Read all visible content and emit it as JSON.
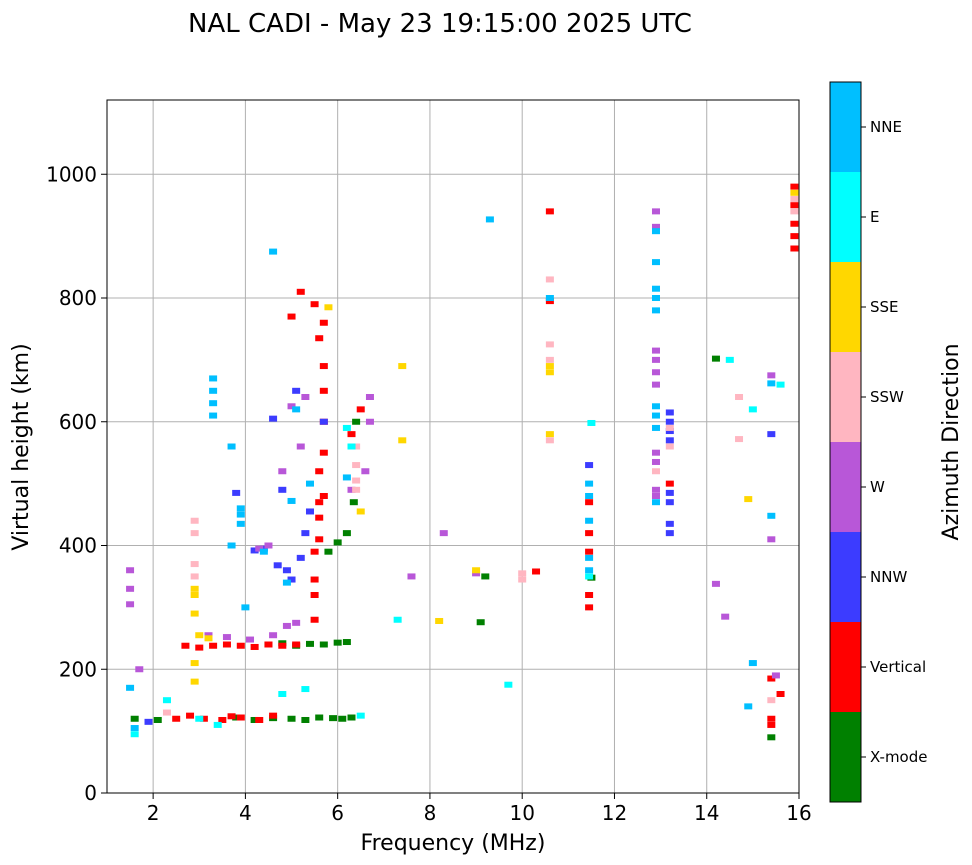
{
  "chart_data": {
    "type": "scatter",
    "title": "NAL CADI - May 23 19:15:00 2025 UTC",
    "xlabel": "Frequency (MHz)",
    "ylabel": "Virtual height (km)",
    "xlim": [
      1,
      16
    ],
    "ylim": [
      0,
      1120
    ],
    "xticks": [
      2,
      4,
      6,
      8,
      10,
      12,
      14,
      16
    ],
    "yticks": [
      0,
      200,
      400,
      600,
      800,
      1000
    ],
    "grid": true,
    "colorbar": {
      "label": "Azimuth Direction",
      "categories": [
        "X-mode",
        "Vertical",
        "NNW",
        "W",
        "SSW",
        "SSE",
        "E",
        "NNE"
      ],
      "colors": [
        "#008000",
        "#ff0000",
        "#3c3cff",
        "#b857d8",
        "#ffb6c1",
        "#ffd700",
        "#00ffff",
        "#00bfff"
      ]
    },
    "series": [
      {
        "name": "X-mode",
        "points": [
          [
            1.6,
            120
          ],
          [
            2.1,
            118
          ],
          [
            3.8,
            122
          ],
          [
            4.2,
            118
          ],
          [
            4.6,
            121
          ],
          [
            5.0,
            120
          ],
          [
            5.3,
            118
          ],
          [
            5.6,
            122
          ],
          [
            5.9,
            121
          ],
          [
            6.1,
            120
          ],
          [
            6.3,
            122
          ],
          [
            4.5,
            240
          ],
          [
            4.8,
            242
          ],
          [
            5.1,
            238
          ],
          [
            5.4,
            241
          ],
          [
            5.7,
            240
          ],
          [
            6.0,
            243
          ],
          [
            6.2,
            244
          ],
          [
            5.8,
            390
          ],
          [
            6.0,
            405
          ],
          [
            6.2,
            420
          ],
          [
            6.35,
            470
          ],
          [
            6.4,
            600
          ],
          [
            9.1,
            276
          ],
          [
            11.5,
            348
          ],
          [
            14.2,
            702
          ],
          [
            15.4,
            90
          ],
          [
            9.2,
            350
          ]
        ]
      },
      {
        "name": "Vertical",
        "points": [
          [
            2.5,
            120
          ],
          [
            2.8,
            125
          ],
          [
            3.1,
            120
          ],
          [
            3.5,
            118
          ],
          [
            3.7,
            124
          ],
          [
            3.9,
            122
          ],
          [
            4.3,
            118
          ],
          [
            4.6,
            125
          ],
          [
            2.7,
            238
          ],
          [
            3.0,
            235
          ],
          [
            3.3,
            238
          ],
          [
            3.6,
            240
          ],
          [
            3.9,
            238
          ],
          [
            4.2,
            236
          ],
          [
            4.5,
            240
          ],
          [
            4.8,
            238
          ],
          [
            5.1,
            240
          ],
          [
            5.5,
            280
          ],
          [
            5.5,
            320
          ],
          [
            5.5,
            345
          ],
          [
            5.5,
            390
          ],
          [
            5.6,
            410
          ],
          [
            5.6,
            445
          ],
          [
            5.6,
            470
          ],
          [
            5.7,
            480
          ],
          [
            5.6,
            520
          ],
          [
            5.7,
            550
          ],
          [
            5.7,
            600
          ],
          [
            5.7,
            650
          ],
          [
            5.7,
            690
          ],
          [
            5.6,
            735
          ],
          [
            5.7,
            760
          ],
          [
            5.5,
            790
          ],
          [
            5.2,
            810
          ],
          [
            5.0,
            770
          ],
          [
            6.3,
            580
          ],
          [
            6.5,
            620
          ],
          [
            10.3,
            358
          ],
          [
            10.6,
            795
          ],
          [
            10.6,
            940
          ],
          [
            11.45,
            300
          ],
          [
            11.45,
            320
          ],
          [
            11.45,
            390
          ],
          [
            11.45,
            420
          ],
          [
            11.45,
            470
          ],
          [
            13.2,
            500
          ],
          [
            15.4,
            110
          ],
          [
            15.4,
            120
          ],
          [
            15.4,
            185
          ],
          [
            15.6,
            160
          ],
          [
            15.9,
            880
          ],
          [
            15.9,
            900
          ],
          [
            15.9,
            920
          ],
          [
            15.9,
            950
          ],
          [
            15.9,
            980
          ]
        ]
      },
      {
        "name": "NNW",
        "points": [
          [
            1.9,
            115
          ],
          [
            4.2,
            392
          ],
          [
            4.4,
            395
          ],
          [
            4.7,
            368
          ],
          [
            4.9,
            360
          ],
          [
            5.0,
            345
          ],
          [
            5.2,
            380
          ],
          [
            5.3,
            420
          ],
          [
            5.4,
            455
          ],
          [
            5.1,
            650
          ],
          [
            4.6,
            605
          ],
          [
            5.7,
            600
          ],
          [
            13.2,
            420
          ],
          [
            13.2,
            435
          ],
          [
            13.2,
            470
          ],
          [
            13.2,
            485
          ],
          [
            13.2,
            570
          ],
          [
            13.2,
            585
          ],
          [
            13.2,
            600
          ],
          [
            13.2,
            615
          ],
          [
            15.4,
            580
          ],
          [
            11.45,
            530
          ],
          [
            4.8,
            490
          ],
          [
            3.8,
            485
          ]
        ]
      },
      {
        "name": "W",
        "points": [
          [
            1.5,
            360
          ],
          [
            1.5,
            330
          ],
          [
            1.5,
            305
          ],
          [
            1.7,
            200
          ],
          [
            3.2,
            255
          ],
          [
            3.6,
            252
          ],
          [
            4.1,
            248
          ],
          [
            4.6,
            255
          ],
          [
            4.9,
            270
          ],
          [
            5.1,
            275
          ],
          [
            4.3,
            395
          ],
          [
            4.5,
            400
          ],
          [
            4.8,
            520
          ],
          [
            5.2,
            560
          ],
          [
            5.3,
            640
          ],
          [
            5.0,
            625
          ],
          [
            6.3,
            490
          ],
          [
            6.6,
            520
          ],
          [
            6.7,
            600
          ],
          [
            6.7,
            640
          ],
          [
            7.6,
            350
          ],
          [
            8.3,
            420
          ],
          [
            9.0,
            355
          ],
          [
            12.9,
            480
          ],
          [
            12.9,
            490
          ],
          [
            12.9,
            535
          ],
          [
            12.9,
            550
          ],
          [
            12.9,
            660
          ],
          [
            12.9,
            680
          ],
          [
            12.9,
            700
          ],
          [
            12.9,
            715
          ],
          [
            12.9,
            915
          ],
          [
            12.9,
            940
          ],
          [
            14.2,
            338
          ],
          [
            14.4,
            285
          ],
          [
            15.4,
            410
          ],
          [
            15.4,
            675
          ],
          [
            15.5,
            190
          ]
        ]
      },
      {
        "name": "SSW",
        "points": [
          [
            2.3,
            130
          ],
          [
            2.9,
            420
          ],
          [
            2.9,
            440
          ],
          [
            2.9,
            350
          ],
          [
            2.9,
            370
          ],
          [
            6.4,
            490
          ],
          [
            6.4,
            505
          ],
          [
            6.4,
            530
          ],
          [
            6.4,
            560
          ],
          [
            10.0,
            355
          ],
          [
            10.0,
            345
          ],
          [
            10.6,
            570
          ],
          [
            10.6,
            700
          ],
          [
            10.6,
            725
          ],
          [
            10.6,
            830
          ],
          [
            13.2,
            590
          ],
          [
            13.2,
            560
          ],
          [
            12.9,
            520
          ],
          [
            14.7,
            572
          ],
          [
            14.7,
            640
          ],
          [
            15.9,
            960
          ],
          [
            15.9,
            940
          ],
          [
            15.4,
            150
          ]
        ]
      },
      {
        "name": "SSE",
        "points": [
          [
            2.9,
            180
          ],
          [
            2.9,
            210
          ],
          [
            2.9,
            290
          ],
          [
            2.9,
            320
          ],
          [
            2.9,
            330
          ],
          [
            3.0,
            255
          ],
          [
            3.2,
            250
          ],
          [
            5.8,
            785
          ],
          [
            6.5,
            455
          ],
          [
            7.4,
            690
          ],
          [
            7.4,
            570
          ],
          [
            8.2,
            278
          ],
          [
            9.0,
            360
          ],
          [
            10.6,
            580
          ],
          [
            10.6,
            680
          ],
          [
            10.6,
            690
          ],
          [
            14.9,
            475
          ],
          [
            15.9,
            970
          ]
        ]
      },
      {
        "name": "E",
        "points": [
          [
            1.6,
            95
          ],
          [
            2.3,
            150
          ],
          [
            3.0,
            120
          ],
          [
            3.4,
            110
          ],
          [
            4.8,
            160
          ],
          [
            5.3,
            168
          ],
          [
            6.5,
            125
          ],
          [
            6.2,
            590
          ],
          [
            6.3,
            560
          ],
          [
            7.3,
            280
          ],
          [
            9.7,
            175
          ],
          [
            11.45,
            350
          ],
          [
            11.5,
            598
          ],
          [
            15.0,
            620
          ],
          [
            15.6,
            660
          ],
          [
            14.5,
            700
          ]
        ]
      },
      {
        "name": "NNE",
        "points": [
          [
            1.5,
            170
          ],
          [
            1.6,
            105
          ],
          [
            3.3,
            610
          ],
          [
            3.3,
            630
          ],
          [
            3.3,
            650
          ],
          [
            3.3,
            670
          ],
          [
            3.7,
            560
          ],
          [
            3.9,
            435
          ],
          [
            3.9,
            450
          ],
          [
            3.9,
            460
          ],
          [
            3.7,
            400
          ],
          [
            4.0,
            300
          ],
          [
            4.4,
            390
          ],
          [
            4.9,
            340
          ],
          [
            5.0,
            472
          ],
          [
            5.1,
            620
          ],
          [
            5.4,
            500
          ],
          [
            6.2,
            510
          ],
          [
            4.6,
            875
          ],
          [
            9.3,
            927
          ],
          [
            10.6,
            800
          ],
          [
            11.45,
            440
          ],
          [
            11.45,
            480
          ],
          [
            11.45,
            500
          ],
          [
            11.45,
            360
          ],
          [
            11.45,
            380
          ],
          [
            12.9,
            470
          ],
          [
            12.9,
            590
          ],
          [
            12.9,
            610
          ],
          [
            12.9,
            625
          ],
          [
            12.9,
            780
          ],
          [
            12.9,
            800
          ],
          [
            12.9,
            815
          ],
          [
            12.9,
            858
          ],
          [
            12.9,
            908
          ],
          [
            14.9,
            140
          ],
          [
            15.0,
            210
          ],
          [
            15.4,
            448
          ],
          [
            15.4,
            662
          ]
        ]
      }
    ]
  }
}
